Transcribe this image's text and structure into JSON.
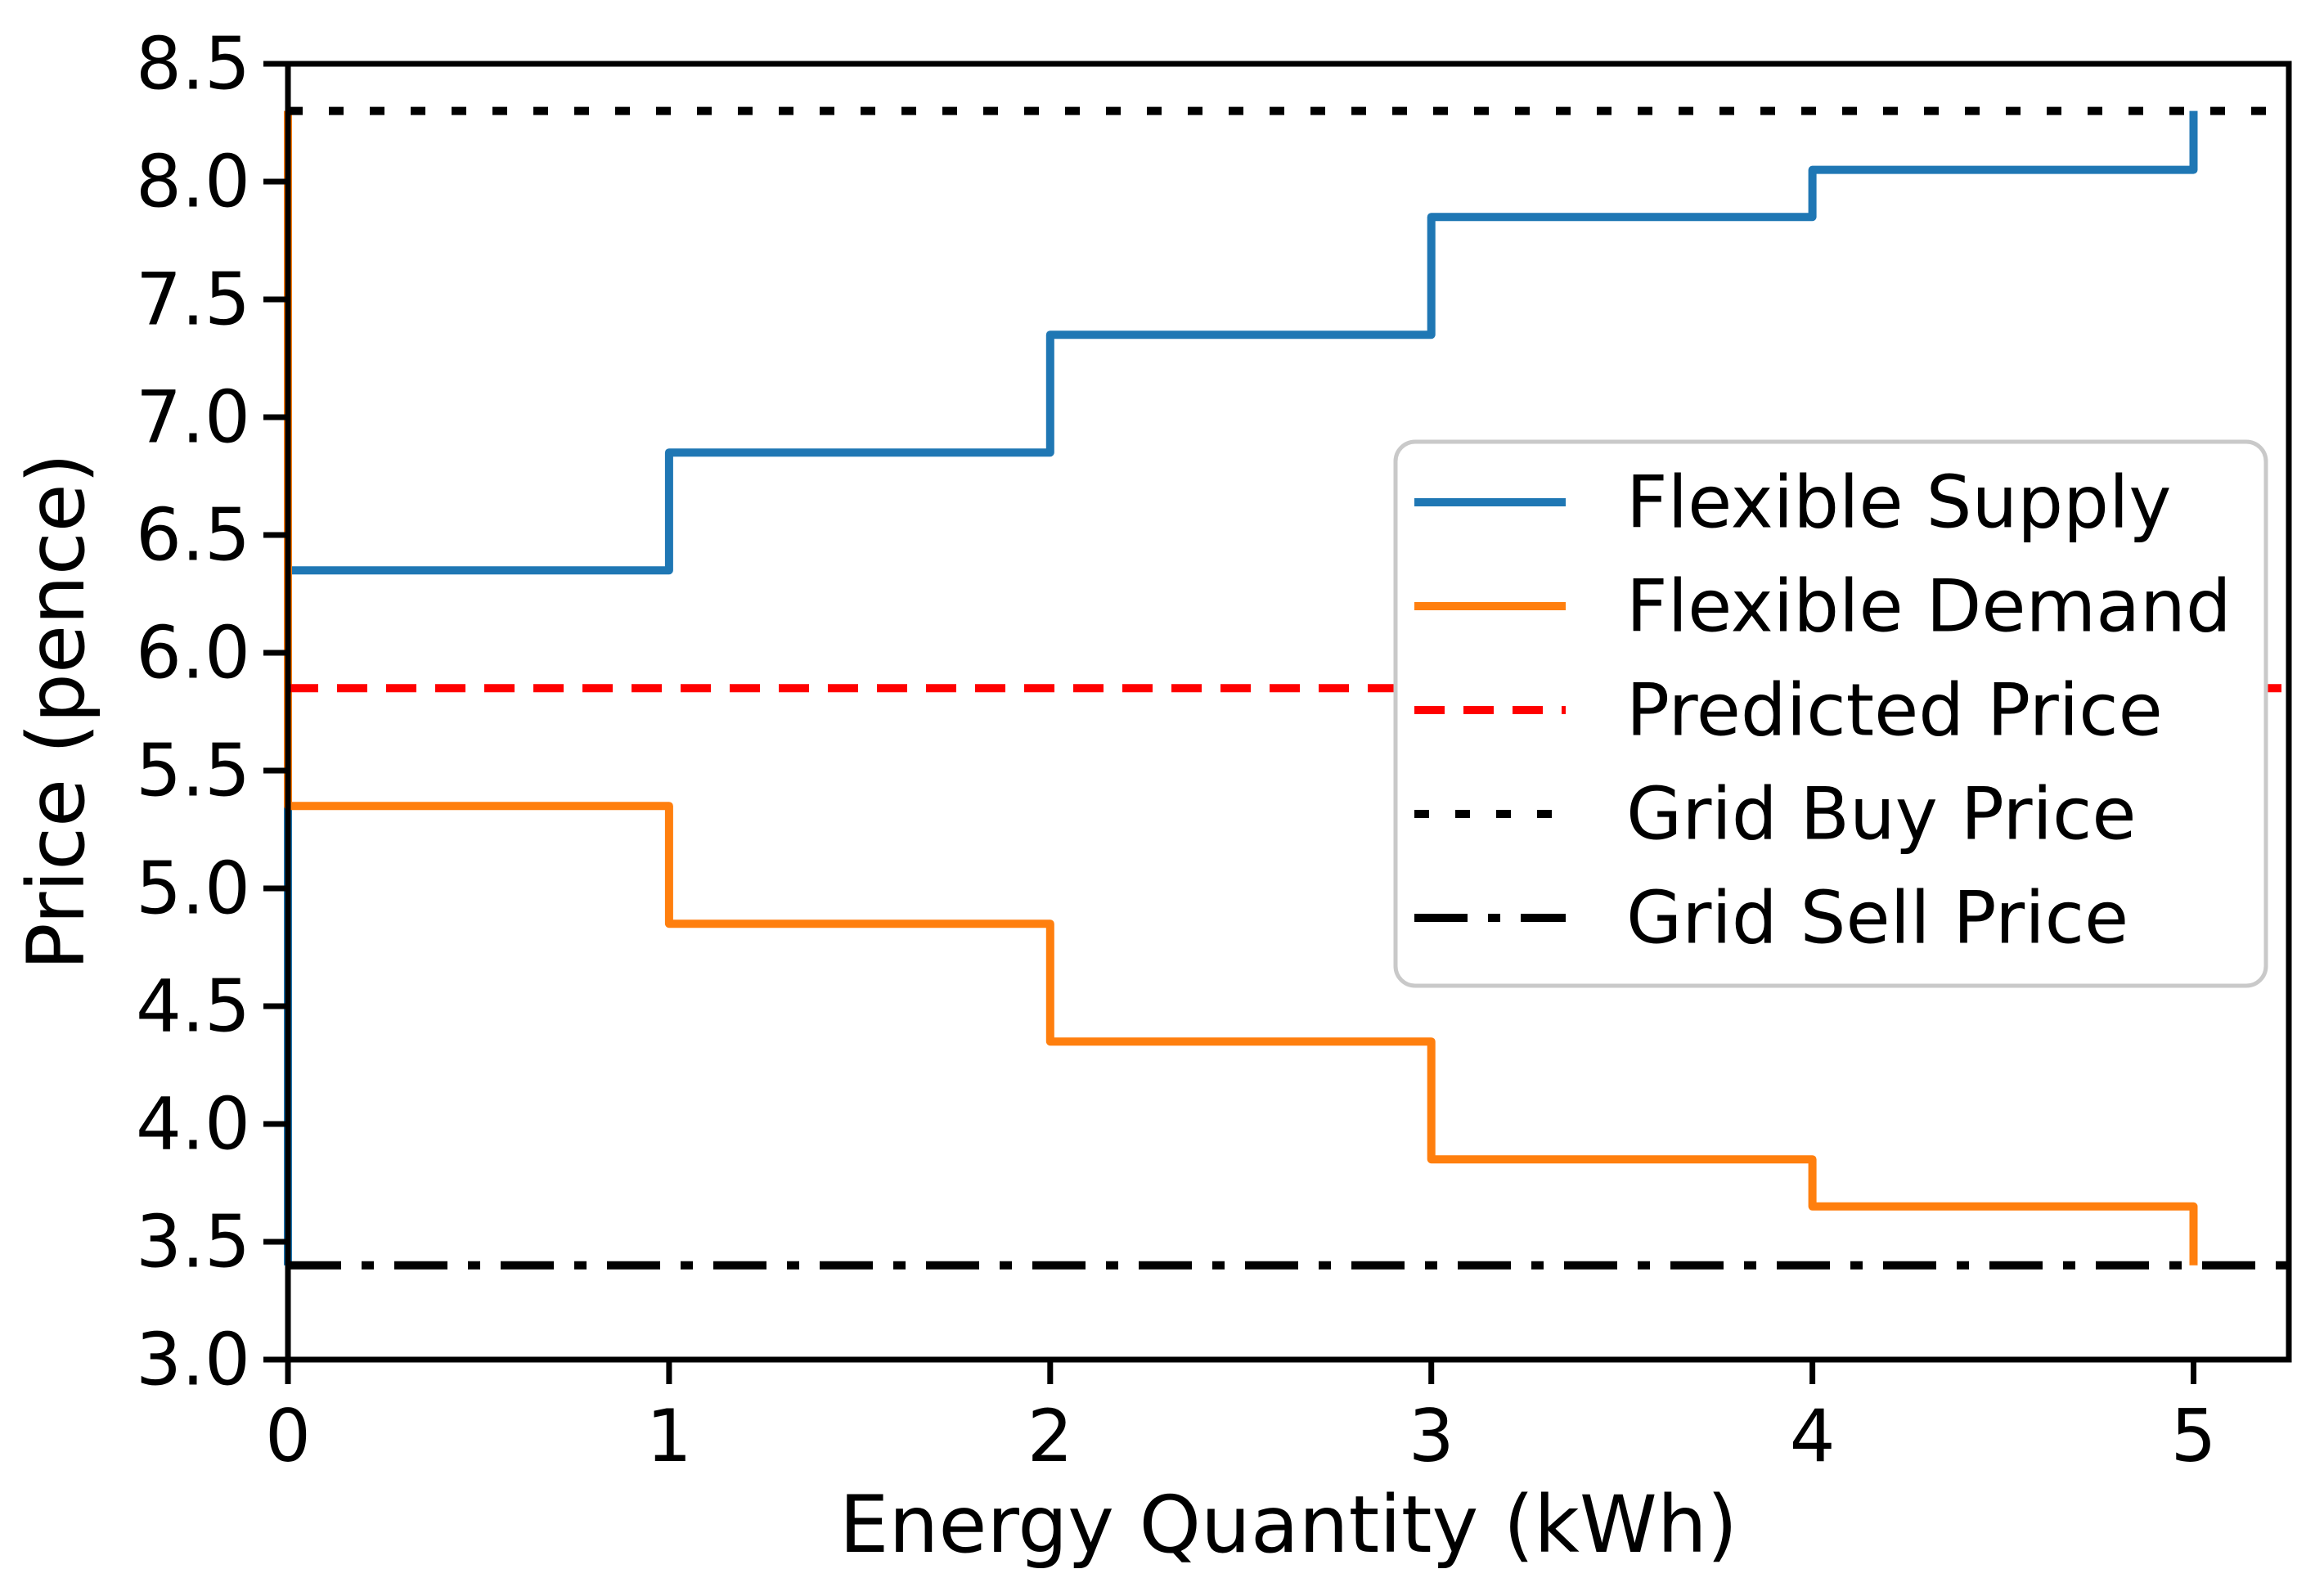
{
  "figure": {
    "background": "#ffffff"
  },
  "chart_data": {
    "type": "line",
    "subtype": "step-auction-curves",
    "title": "",
    "xlabel": "Energy Quantity (kWh)",
    "ylabel": "Price (pence)",
    "xlim": [
      0,
      5.25
    ],
    "ylim": [
      3.0,
      8.5
    ],
    "xticks": [
      0,
      1,
      2,
      3,
      4,
      5
    ],
    "yticks": [
      3.0,
      3.5,
      4.0,
      4.5,
      5.0,
      5.5,
      6.0,
      6.5,
      7.0,
      7.5,
      8.0,
      8.5
    ],
    "grid": false,
    "legend_position": "center right",
    "series": [
      {
        "name": "Flexible Supply",
        "color": "#1f77b4",
        "style": "solid",
        "points": [
          [
            0,
            3.4
          ],
          [
            0,
            6.35
          ],
          [
            1,
            6.35
          ],
          [
            1,
            6.85
          ],
          [
            2,
            6.85
          ],
          [
            2,
            7.35
          ],
          [
            3,
            7.35
          ],
          [
            3,
            7.85
          ],
          [
            4,
            7.85
          ],
          [
            4,
            8.05
          ],
          [
            5,
            8.05
          ],
          [
            5,
            8.3
          ]
        ]
      },
      {
        "name": "Flexible Demand",
        "color": "#ff7f0e",
        "style": "solid",
        "points": [
          [
            0,
            8.3
          ],
          [
            0,
            5.35
          ],
          [
            1,
            5.35
          ],
          [
            1,
            4.85
          ],
          [
            2,
            4.85
          ],
          [
            2,
            4.35
          ],
          [
            3,
            4.35
          ],
          [
            3,
            3.85
          ],
          [
            4,
            3.85
          ],
          [
            4,
            3.65
          ],
          [
            5,
            3.65
          ],
          [
            5,
            3.4
          ]
        ]
      },
      {
        "name": "Predicted Price",
        "color": "#ff0000",
        "style": "dashed",
        "y": 5.85
      },
      {
        "name": "Grid Buy Price",
        "color": "#000000",
        "style": "dotted",
        "y": 8.3
      },
      {
        "name": "Grid Sell Price",
        "color": "#000000",
        "style": "dashdot",
        "y": 3.4
      }
    ],
    "supply_step_prices": [
      6.35,
      6.85,
      7.35,
      7.85,
      8.05
    ],
    "demand_step_prices": [
      5.35,
      4.85,
      4.35,
      3.85,
      3.65
    ],
    "predicted_price": 5.85,
    "grid_buy_price": 8.3,
    "grid_sell_price": 3.4
  }
}
